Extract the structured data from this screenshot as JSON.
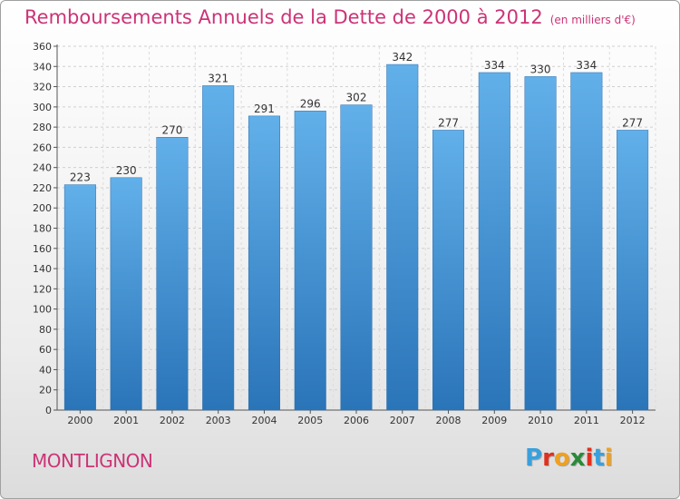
{
  "header": {
    "title": "Remboursements Annuels de la Dette de 2000 à 2012",
    "units": "(en milliers d'€)"
  },
  "footer": {
    "place": "MONTLIGNON",
    "logo_letters": [
      "P",
      "r",
      "o",
      "x",
      "i",
      "t",
      "i"
    ],
    "logo_colors": [
      "#3aa0dc",
      "#e0301e",
      "#f0a020",
      "#2a8a3a",
      "#e0301e",
      "#3aa0dc",
      "#f0a020"
    ]
  },
  "colors": {
    "bar": "#3d8fd2",
    "bar_light": "#62b0ea",
    "bar_dark": "#2a74b8",
    "title": "#cc3377"
  },
  "chart_data": {
    "type": "bar",
    "title": "Remboursements Annuels de la Dette de 2000 à 2012",
    "xlabel": "",
    "ylabel": "",
    "categories": [
      "2000",
      "2001",
      "2002",
      "2003",
      "2004",
      "2005",
      "2006",
      "2007",
      "2008",
      "2009",
      "2010",
      "2011",
      "2012"
    ],
    "values": [
      223,
      230,
      270,
      321,
      291,
      296,
      302,
      342,
      277,
      334,
      330,
      334,
      277
    ],
    "ylim": [
      0,
      360
    ],
    "yticks": [
      0,
      20,
      40,
      60,
      80,
      100,
      120,
      140,
      160,
      180,
      200,
      220,
      240,
      260,
      280,
      300,
      320,
      340,
      360
    ],
    "grid": true
  }
}
